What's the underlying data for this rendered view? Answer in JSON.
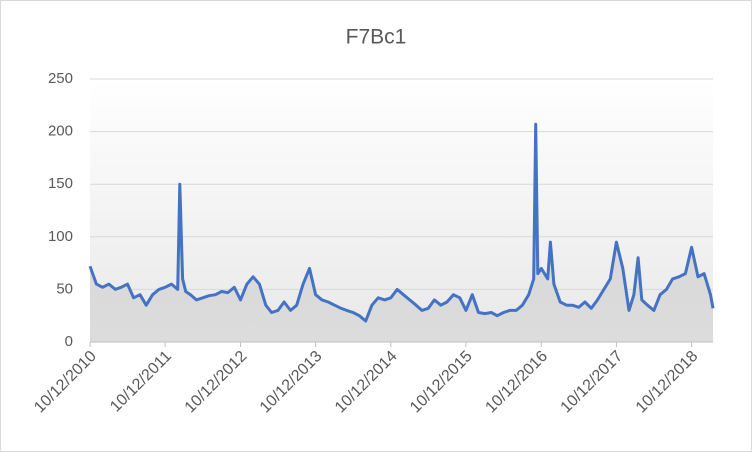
{
  "chart_data": {
    "type": "area-line",
    "title": "F7Bc1",
    "x": [
      "2010-10-12",
      "2010-11-12",
      "2010-12-12",
      "2011-01-12",
      "2011-02-12",
      "2011-03-12",
      "2011-04-12",
      "2011-05-12",
      "2011-06-12",
      "2011-07-12",
      "2011-08-12",
      "2011-09-12",
      "2011-10-12",
      "2011-11-12",
      "2011-12-12",
      "2011-12-22",
      "2012-01-05",
      "2012-01-20",
      "2012-02-12",
      "2012-03-12",
      "2012-04-12",
      "2012-05-12",
      "2012-06-12",
      "2012-07-12",
      "2012-08-12",
      "2012-09-12",
      "2012-10-12",
      "2012-11-12",
      "2012-12-12",
      "2013-01-12",
      "2013-02-12",
      "2013-03-12",
      "2013-04-12",
      "2013-05-12",
      "2013-06-12",
      "2013-07-12",
      "2013-08-12",
      "2013-09-12",
      "2013-10-12",
      "2013-11-12",
      "2013-12-12",
      "2014-01-12",
      "2014-02-12",
      "2014-03-12",
      "2014-04-12",
      "2014-05-12",
      "2014-06-12",
      "2014-07-12",
      "2014-08-12",
      "2014-09-12",
      "2014-10-12",
      "2014-11-12",
      "2014-12-12",
      "2015-01-12",
      "2015-02-12",
      "2015-03-12",
      "2015-04-12",
      "2015-05-12",
      "2015-06-12",
      "2015-07-12",
      "2015-08-12",
      "2015-09-12",
      "2015-10-12",
      "2015-11-12",
      "2015-12-12",
      "2016-01-12",
      "2016-02-12",
      "2016-03-12",
      "2016-04-12",
      "2016-05-12",
      "2016-06-12",
      "2016-07-12",
      "2016-08-12",
      "2016-09-05",
      "2016-09-15",
      "2016-09-25",
      "2016-10-12",
      "2016-11-12",
      "2016-11-25",
      "2016-12-12",
      "2017-01-12",
      "2017-02-12",
      "2017-03-12",
      "2017-04-12",
      "2017-05-12",
      "2017-06-12",
      "2017-07-12",
      "2017-08-12",
      "2017-09-12",
      "2017-10-12",
      "2017-11-12",
      "2017-12-12",
      "2018-01-05",
      "2018-01-25",
      "2018-02-12",
      "2018-03-12",
      "2018-04-12",
      "2018-05-12",
      "2018-06-12",
      "2018-07-12",
      "2018-08-12",
      "2018-09-12",
      "2018-10-12",
      "2018-11-12",
      "2018-12-12",
      "2019-01-12",
      "2019-01-24"
    ],
    "values": [
      72,
      55,
      52,
      55,
      50,
      52,
      55,
      42,
      45,
      35,
      45,
      50,
      52,
      55,
      50,
      150,
      60,
      48,
      45,
      40,
      42,
      44,
      45,
      48,
      47,
      52,
      40,
      55,
      62,
      55,
      35,
      28,
      30,
      38,
      30,
      35,
      55,
      70,
      45,
      40,
      38,
      35,
      32,
      30,
      28,
      25,
      20,
      35,
      42,
      40,
      42,
      50,
      45,
      40,
      35,
      30,
      32,
      40,
      35,
      38,
      45,
      42,
      30,
      45,
      28,
      27,
      28,
      25,
      28,
      30,
      30,
      35,
      45,
      60,
      207,
      65,
      70,
      60,
      95,
      55,
      38,
      35,
      35,
      33,
      38,
      32,
      40,
      50,
      60,
      95,
      70,
      30,
      45,
      80,
      40,
      35,
      30,
      45,
      50,
      60,
      62,
      65,
      90,
      62,
      65,
      45,
      32
    ],
    "color": "#4472c4",
    "ylim": [
      0,
      250
    ],
    "yticks": [
      0,
      50,
      100,
      150,
      200,
      250
    ],
    "xlim": [
      "2010-10-12",
      "2019-01-24"
    ],
    "xticks": [
      {
        "value": "2010-10-12",
        "label": "10/12/2010"
      },
      {
        "value": "2011-10-12",
        "label": "10/12/2011"
      },
      {
        "value": "2012-10-12",
        "label": "10/12/2012"
      },
      {
        "value": "2013-10-12",
        "label": "10/12/2013"
      },
      {
        "value": "2014-10-12",
        "label": "10/12/2014"
      },
      {
        "value": "2015-10-12",
        "label": "10/12/2015"
      },
      {
        "value": "2016-10-12",
        "label": "10/12/2016"
      },
      {
        "value": "2017-10-12",
        "label": "10/12/2017"
      },
      {
        "value": "2018-10-12",
        "label": "10/12/2018"
      }
    ],
    "grid": true
  }
}
